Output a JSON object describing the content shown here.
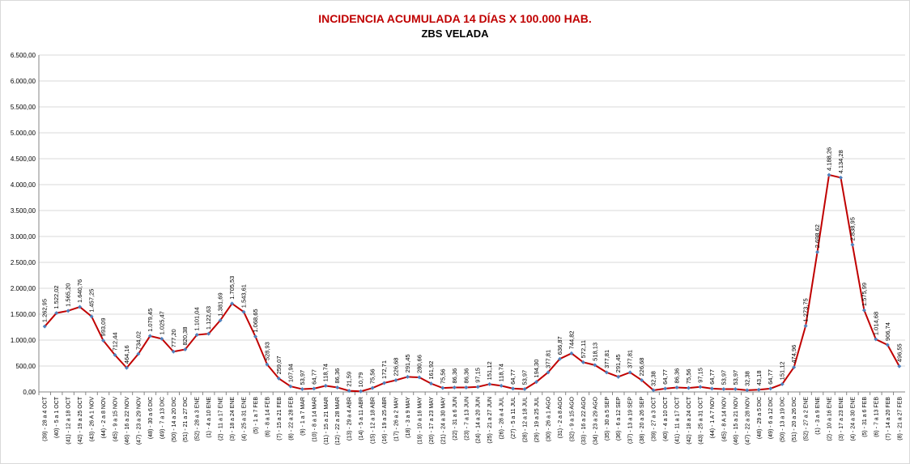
{
  "chart_data": {
    "type": "line",
    "title": "INCIDENCIA ACUMULADA 14 DÍAS X 100.000 HAB.",
    "subtitle": "ZBS VELADA",
    "categories": [
      "(39) - 28 a 4 OCT",
      "(40) - 5 a 1 OCT",
      "(41) - 12 a 18 OCT",
      "(42) - 19 a 25 OCT",
      "(43) - 26 A 1 NOV",
      "(44) - 2 a 8 NOV",
      "(45) - 9 a 15 NOV",
      "(46) - 16 a 22 NOV",
      "(47) - 23 a 29 NOV",
      "(48) - 30 a 6 DIC",
      "(49) - 7 a 13 DIC",
      "(50) - 14 a 20 DIC",
      "(51) - 21 a 27 DIC",
      "(52) - 28 a 3 ENE",
      "(1) - 4 a 10 ENE",
      "(2) - 11 a 17 ENE",
      "(3) - 18 a 24 ENE",
      "(4) - 25 a 31 ENE",
      "(5) - 1 a 7 FEB",
      "(6) - 8 a 14 FEB",
      "(7) - 15 a 21 FEB",
      "(8) - 22 a 28 FEB",
      "(9) - 1 a 7 MAR",
      "(10) - 8 a 14 MAR",
      "(11) - 15 a 21 MAR",
      "(12) - 22 a 28 MAR",
      "(13) - 29 a 4 ABR",
      "(14) - 5 a 11 ABR",
      "(15) - 12 a 18 ABR",
      "(16) - 19 a 25 ABR",
      "(17) - 26 a 2 MAY",
      "(18) - 3 a 9 MAY",
      "(19) - 10 a 16 MAY",
      "(20) - 17 a 23 MAY",
      "(21) - 24 a 30 MAY",
      "(22) - 31 a 6 JUN",
      "(23) - 7 a 13 JUN",
      "(24) - 14 a 20 JUN",
      "(25) - 21 a 27 JUN",
      "(26) - 28 a 4 JUL",
      "(27) - 5 a 11 JUL",
      "(28) - 12 a 18 JUL",
      "(29) - 19 a 25 JUL",
      "(30) - 26 a 1 AGO",
      "(31) - 2 a 8 AGO",
      "(32) - 9 a 15 AGO",
      "(33) - 16 a 22 AGO",
      "(34) - 23 a 29 AGO",
      "(35) - 30 a 5 SEP",
      "(36) - 6 a 12 SEP",
      "(37) - 13 a 19 SEP",
      "(38) - 20 a 26 SEP",
      "(39) - 27 a 3 OCT",
      "(40) - 4 a 10 OCT",
      "(41) - 11 a 17 OCT",
      "(42) - 18 a 24 OCT",
      "(43) - 25 a 31 OCT",
      "(44) - 1 A 7 NOV",
      "(45) - 8 A 14 NOV",
      "(46) - 15 a 21 NOV",
      "(47) - 22 a 28 NOV",
      "(48) - 29 a 5 DIC",
      "(49) - 6 a 12 DIC",
      "(50) - 13 a 19 DIC",
      "(51) - 20 a 26 DIC",
      "(52) - 27 a 2 ENE",
      "(1) - 3 a 9 ENE",
      "(2) - 10 a 16 ENE",
      "(3) - 17 a 23 ENE",
      "(4) - 24 a 30 ENE",
      "(5) - 31 a 6 FEB",
      "(6) - 7 a 13 FEB",
      "(7) - 14 a 20 FEB",
      "(8) - 21 a 27 FEB"
    ],
    "values": [
      1262.95,
      1522.02,
      1565.2,
      1640.76,
      1457.25,
      993.09,
      712.44,
      464.16,
      734.02,
      1079.45,
      1025.47,
      777.2,
      820.38,
      1101.04,
      1122.63,
      1381.69,
      1705.53,
      1543.61,
      1068.65,
      528.93,
      259.07,
      107.94,
      53.97,
      64.77,
      118.74,
      86.36,
      21.59,
      10.79,
      75.56,
      172.71,
      226.68,
      291.45,
      280.66,
      161.92,
      75.56,
      86.36,
      86.36,
      97.15,
      151.12,
      118.74,
      64.77,
      53.97,
      194.3,
      377.81,
      636.87,
      744.82,
      572.11,
      518.13,
      377.81,
      291.45,
      377.81,
      226.68,
      32.38,
      64.77,
      86.36,
      75.56,
      97.15,
      64.77,
      53.97,
      53.97,
      32.38,
      43.18,
      64.77,
      151.12,
      474.96,
      1273.75,
      2698.62,
      4188.26,
      4134.28,
      2838.95,
      1575.99,
      1014.68,
      906.74,
      496.55
    ],
    "value_labels": [
      "1.262,95",
      "1.522,02",
      "1.565,20",
      "1.640,76",
      "1.457,25",
      "993,09",
      "712,44",
      "464,16",
      "734,02",
      "1.079,45",
      "1.025,47",
      "777,20",
      "820,38",
      "1.101,04",
      "1.122,63",
      "1.381,69",
      "1.705,53",
      "1.543,61",
      "1.068,65",
      "528,93",
      "259,07",
      "107,94",
      "53,97",
      "64,77",
      "118,74",
      "86,36",
      "21,59",
      "10,79",
      "75,56",
      "172,71",
      "226,68",
      "291,45",
      "280,66",
      "161,92",
      "75,56",
      "86,36",
      "86,36",
      "97,15",
      "151,12",
      "118,74",
      "64,77",
      "53,97",
      "194,30",
      "377,81",
      "636,87",
      "744,82",
      "572,11",
      "518,13",
      "377,81",
      "291,45",
      "377,81",
      "226,68",
      "32,38",
      "64,77",
      "86,36",
      "75,56",
      "97,15",
      "64,77",
      "53,97",
      "53,97",
      "32,38",
      "43,18",
      "64,77",
      "151,12",
      "474,96",
      "1.273,75",
      "2.698,62",
      "4.188,26",
      "4.134,28",
      "2.838,95",
      "1.575,99",
      "1.014,68",
      "906,74",
      "496,55"
    ],
    "color": "#c00000",
    "marker_color": "#4f81bd",
    "title_color": "#c00000",
    "ylim": [
      0,
      6500
    ],
    "yticks": [
      {
        "value": 0,
        "label": "0,00"
      },
      {
        "value": 500,
        "label": "500,00"
      },
      {
        "value": 1000,
        "label": "1.000,00"
      },
      {
        "value": 1500,
        "label": "1.500,00"
      },
      {
        "value": 2000,
        "label": "2.000,00"
      },
      {
        "value": 2500,
        "label": "2.500,00"
      },
      {
        "value": 3000,
        "label": "3.000,00"
      },
      {
        "value": 3500,
        "label": "3.500,00"
      },
      {
        "value": 4000,
        "label": "4.000,00"
      },
      {
        "value": 4500,
        "label": "4.500,00"
      },
      {
        "value": 5000,
        "label": "5.000,00"
      },
      {
        "value": 5500,
        "label": "5.500,00"
      },
      {
        "value": 6000,
        "label": "6.000,00"
      },
      {
        "value": 6500,
        "label": "6.500,00"
      }
    ],
    "grid": true
  }
}
